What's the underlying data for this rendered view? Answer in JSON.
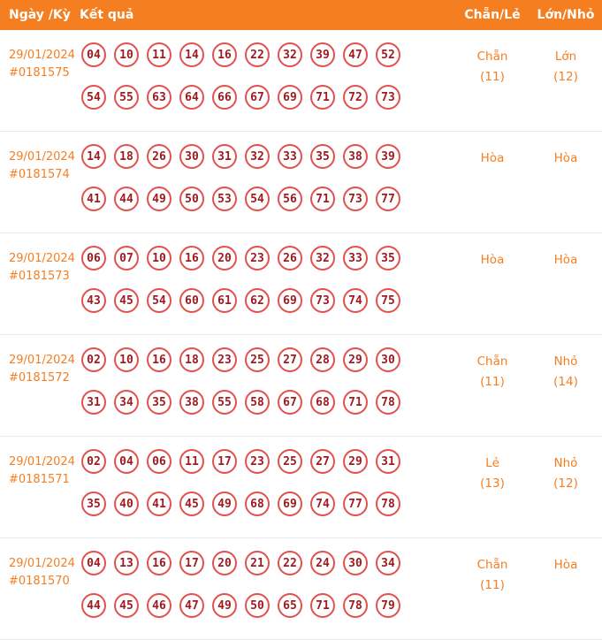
{
  "colors": {
    "header_bg": "#F57E21",
    "accent_orange": "#F57E21",
    "number_text": "#9E1B20",
    "circle_border": "#E2514E"
  },
  "header": {
    "col_date": "Ngày /Kỳ",
    "col_result": "Kết quả",
    "col_chanle": "Chẵn/Lẻ",
    "col_lonnho": "Lớn/Nhỏ"
  },
  "rows": [
    {
      "date": "29/01/2024",
      "period": "#0181575",
      "line1": [
        "04",
        "10",
        "11",
        "14",
        "16",
        "22",
        "32",
        "39",
        "47",
        "52"
      ],
      "line2": [
        "54",
        "55",
        "63",
        "64",
        "66",
        "67",
        "69",
        "71",
        "72",
        "73"
      ],
      "chanle": "Chẵn",
      "chanle_sub": "(11)",
      "lonnho": "Lớn",
      "lonnho_sub": "(12)"
    },
    {
      "date": "29/01/2024",
      "period": "#0181574",
      "line1": [
        "14",
        "18",
        "26",
        "30",
        "31",
        "32",
        "33",
        "35",
        "38",
        "39"
      ],
      "line2": [
        "41",
        "44",
        "49",
        "50",
        "53",
        "54",
        "56",
        "71",
        "73",
        "77"
      ],
      "chanle": "Hòa",
      "chanle_sub": "",
      "lonnho": "Hòa",
      "lonnho_sub": ""
    },
    {
      "date": "29/01/2024",
      "period": "#0181573",
      "line1": [
        "06",
        "07",
        "10",
        "16",
        "20",
        "23",
        "26",
        "32",
        "33",
        "35"
      ],
      "line2": [
        "43",
        "45",
        "54",
        "60",
        "61",
        "62",
        "69",
        "73",
        "74",
        "75"
      ],
      "chanle": "Hòa",
      "chanle_sub": "",
      "lonnho": "Hòa",
      "lonnho_sub": ""
    },
    {
      "date": "29/01/2024",
      "period": "#0181572",
      "line1": [
        "02",
        "10",
        "16",
        "18",
        "23",
        "25",
        "27",
        "28",
        "29",
        "30"
      ],
      "line2": [
        "31",
        "34",
        "35",
        "38",
        "55",
        "58",
        "67",
        "68",
        "71",
        "78"
      ],
      "chanle": "Chẵn",
      "chanle_sub": "(11)",
      "lonnho": "Nhỏ",
      "lonnho_sub": "(14)"
    },
    {
      "date": "29/01/2024",
      "period": "#0181571",
      "line1": [
        "02",
        "04",
        "06",
        "11",
        "17",
        "23",
        "25",
        "27",
        "29",
        "31"
      ],
      "line2": [
        "35",
        "40",
        "41",
        "45",
        "49",
        "68",
        "69",
        "74",
        "77",
        "78"
      ],
      "chanle": "Lẻ",
      "chanle_sub": "(13)",
      "lonnho": "Nhỏ",
      "lonnho_sub": "(12)"
    },
    {
      "date": "29/01/2024",
      "period": "#0181570",
      "line1": [
        "04",
        "13",
        "16",
        "17",
        "20",
        "21",
        "22",
        "24",
        "30",
        "34"
      ],
      "line2": [
        "44",
        "45",
        "46",
        "47",
        "49",
        "50",
        "65",
        "71",
        "78",
        "79"
      ],
      "chanle": "Chẵn",
      "chanle_sub": "(11)",
      "lonnho": "Hòa",
      "lonnho_sub": ""
    }
  ]
}
